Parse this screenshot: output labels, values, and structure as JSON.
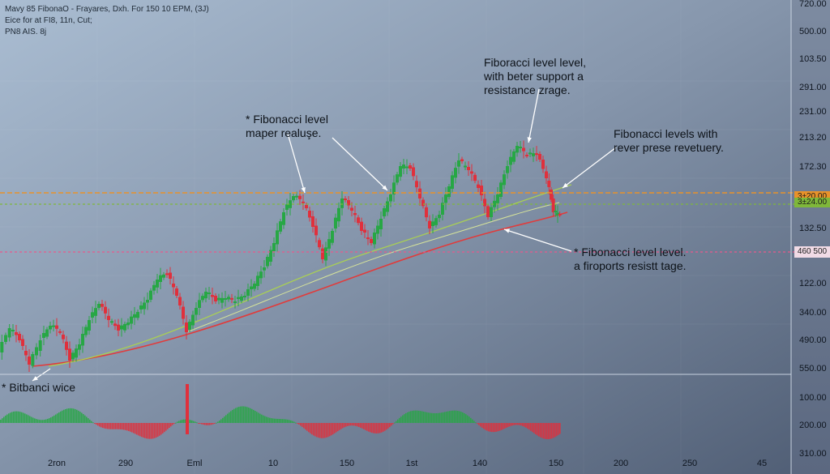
{
  "header": {
    "line1": "Mavy 85 FibonaO - Frayares, Dxh.  For 150 10 EPM, (3J)",
    "line2": "Eice for at FI8, 11n, Cut;",
    "line3": "PN8 AIS. 8j"
  },
  "annotations": [
    {
      "text": [
        "* Fibonacci level",
        "maper realuşe."
      ]
    },
    {
      "text": [
        "Fiboracci level level,",
        "with beter support a",
        "resistance zrage."
      ]
    },
    {
      "text": [
        "Fibonacci levels with",
        "rever prese revetuery."
      ]
    },
    {
      "text": [
        "* Fibonacci level level.",
        "a firoports resistt tage."
      ]
    },
    {
      "text": [
        "* Bitbanci wice"
      ]
    }
  ],
  "level_badges": {
    "orange": "3±20.00",
    "green": "3±24.00",
    "pink": "460 500"
  },
  "colors": {
    "up": "#27a745",
    "down": "#e0303c",
    "orange": "#e8922a",
    "green": "#7fb83a",
    "pink": "#e65a8c",
    "trend_red": "#e03c3c",
    "trend_green": "#a9cf55"
  },
  "chart_data": {
    "type": "candlestick",
    "price_axis_labels": [
      "720.00",
      "500.00",
      "103.50",
      "291.00",
      "231.00",
      "213.20",
      "172.30",
      "3±20.00",
      "132.50",
      "460 500",
      "122.00",
      "340.00",
      "490.00",
      "550.00",
      "100.00",
      "200.00",
      "310.00"
    ],
    "x_tick_labels": [
      "2ron",
      "290",
      "Eml",
      "10",
      "150",
      "1st",
      "140",
      "150",
      "200",
      "250",
      "45"
    ],
    "horizontal_levels": [
      {
        "name": "orange",
        "style": "dashed"
      },
      {
        "name": "green",
        "style": "dashed"
      },
      {
        "name": "pink",
        "style": "dashed"
      }
    ],
    "grid": true
  }
}
